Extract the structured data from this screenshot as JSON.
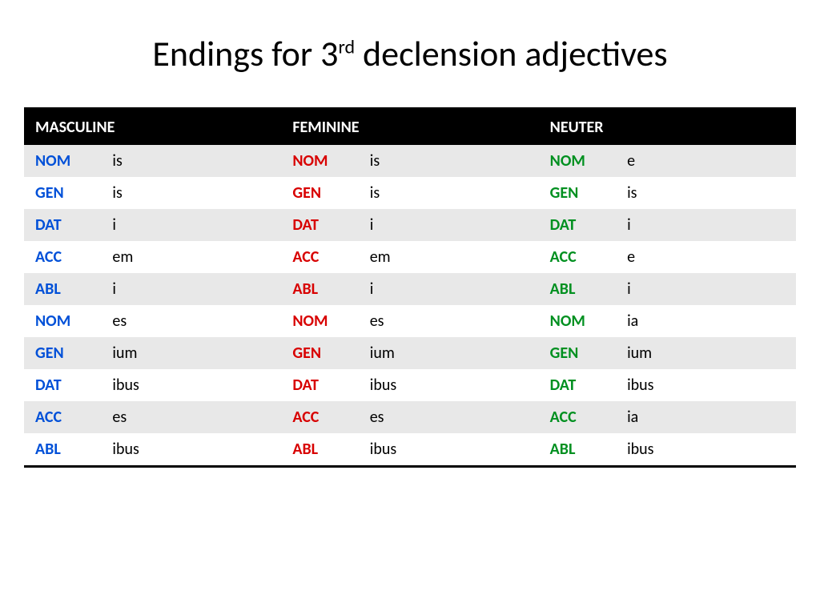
{
  "title": {
    "pre": "Endings for 3",
    "sup": "rd",
    "post": " declension adjectives"
  },
  "headers": [
    "MASCULINE",
    "FEMININE",
    "NEUTER"
  ],
  "colors": {
    "masc": "#0050d8",
    "fem": "#d80000",
    "neu": "#009020",
    "header_bg": "#000000",
    "header_fg": "#ffffff",
    "row_shade": "#e8e8e8",
    "row_plain": "#ffffff",
    "border": "#000000"
  },
  "fonts": {
    "title_pt": 44,
    "cell_pt": 20,
    "header_pt": 20
  },
  "cases": [
    "NOM",
    "GEN",
    "DAT",
    "ACC",
    "ABL",
    "NOM",
    "GEN",
    "DAT",
    "ACC",
    "ABL"
  ],
  "rows": [
    {
      "masc": "is",
      "fem": "is",
      "neu": "e"
    },
    {
      "masc": "is",
      "fem": "is",
      "neu": "is"
    },
    {
      "masc": "i",
      "fem": "i",
      "neu": "i"
    },
    {
      "masc": "em",
      "fem": "em",
      "neu": "e"
    },
    {
      "masc": "i",
      "fem": "i",
      "neu": "i"
    },
    {
      "masc": "es",
      "fem": "es",
      "neu": "ia"
    },
    {
      "masc": "ium",
      "fem": "ium",
      "neu": "ium"
    },
    {
      "masc": "ibus",
      "fem": "ibus",
      "neu": "ibus"
    },
    {
      "masc": "es",
      "fem": "es",
      "neu": "ia"
    },
    {
      "masc": "ibus",
      "fem": "ibus",
      "neu": "ibus"
    }
  ]
}
